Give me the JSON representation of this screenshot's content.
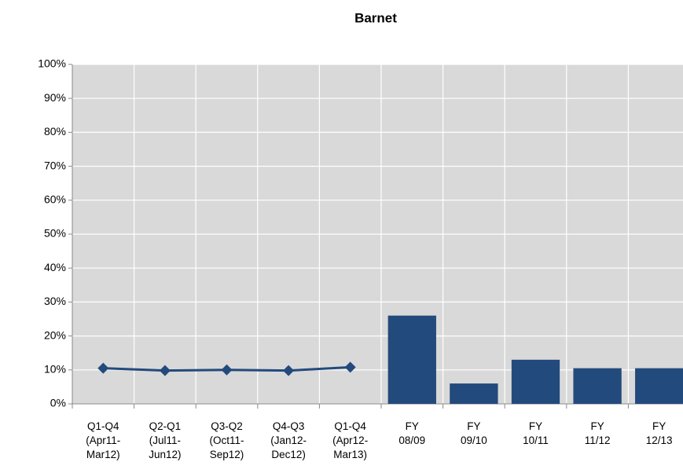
{
  "chart_data": {
    "type": "combo",
    "title": "Barnet",
    "categories": [
      "Q1-Q4\n(Apr11-\nMar12)",
      "Q2-Q1\n(Jul11-\nJun12)",
      "Q3-Q2\n(Oct11-\nSep12)",
      "Q4-Q3\n(Jan12-\nDec12)",
      "Q1-Q4\n(Apr12-\nMar13)",
      "FY\n08/09",
      "FY\n09/10",
      "FY\n10/11",
      "FY\n11/12",
      "FY\n12/13"
    ],
    "series": [
      {
        "type": "line",
        "color": "#234a7c",
        "values": [
          10.5,
          9.8,
          10,
          9.8,
          10.8,
          null,
          null,
          null,
          null,
          null
        ]
      },
      {
        "type": "bar",
        "color": "#234a7c",
        "values": [
          null,
          null,
          null,
          null,
          null,
          26,
          6,
          13,
          10.5,
          10.5
        ]
      }
    ],
    "ylim": [
      0,
      100
    ],
    "yticks": [
      {
        "value": 0,
        "label": "0%"
      },
      {
        "value": 10,
        "label": "10%"
      },
      {
        "value": 20,
        "label": "20%"
      },
      {
        "value": 30,
        "label": "30%"
      },
      {
        "value": 40,
        "label": "40%"
      },
      {
        "value": 50,
        "label": "50%"
      },
      {
        "value": 60,
        "label": "60%"
      },
      {
        "value": 70,
        "label": "70%"
      },
      {
        "value": 80,
        "label": "80%"
      },
      {
        "value": 90,
        "label": "90%"
      },
      {
        "value": 100,
        "label": "100%"
      }
    ],
    "grid": true
  }
}
